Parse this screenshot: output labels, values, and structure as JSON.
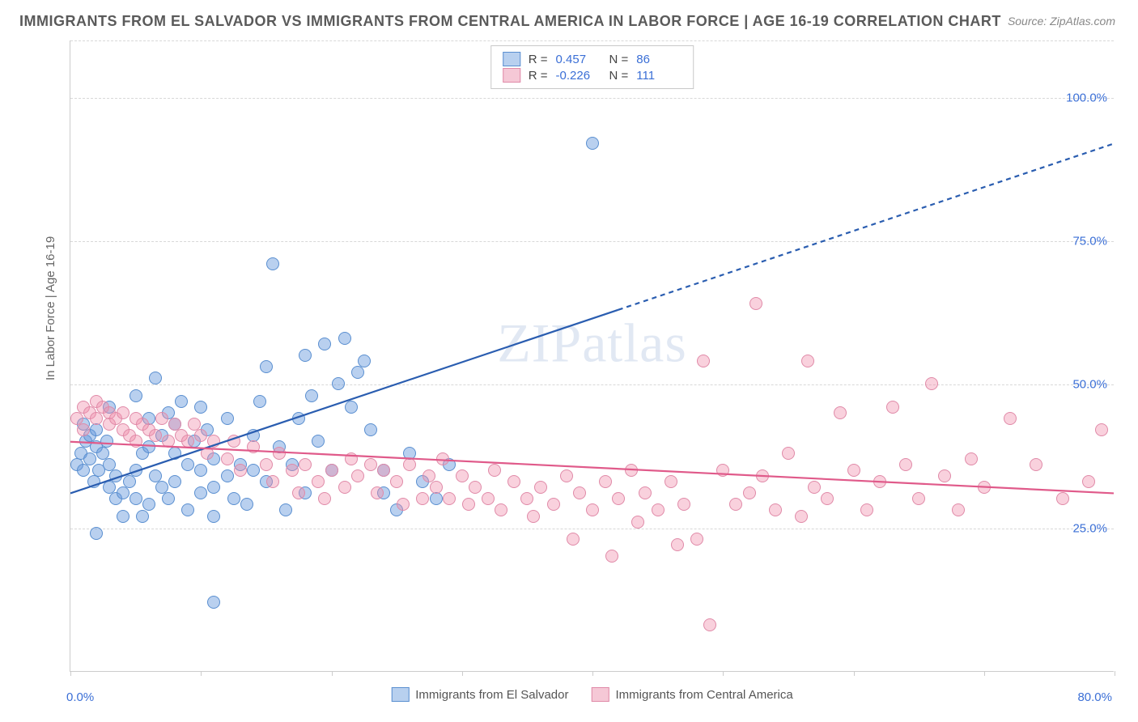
{
  "title": "IMMIGRANTS FROM EL SALVADOR VS IMMIGRANTS FROM CENTRAL AMERICA IN LABOR FORCE | AGE 16-19 CORRELATION CHART",
  "source": "Source: ZipAtlas.com",
  "yaxis_label": "In Labor Force | Age 16-19",
  "watermark": "ZIPatlas",
  "chart": {
    "type": "scatter",
    "xlim": [
      0,
      80
    ],
    "ylim": [
      0,
      110
    ],
    "x_ticks": [
      0,
      10,
      20,
      30,
      40,
      50,
      60,
      70,
      80
    ],
    "x_tick_labels": {
      "0": "0.0%",
      "80": "80.0%"
    },
    "y_gridlines": [
      25,
      50,
      75,
      100
    ],
    "y_labels": {
      "25": "25.0%",
      "50": "50.0%",
      "75": "75.0%",
      "100": "100.0%"
    },
    "background_color": "#ffffff",
    "grid_color": "#d8d8d8",
    "axis_color": "#cccccc",
    "tick_label_color": "#3b6fd6",
    "marker_radius": 8,
    "marker_opacity": 0.55,
    "series": [
      {
        "name": "Immigrants from El Salvador",
        "color_fill": "rgba(100,150,220,0.45)",
        "color_stroke": "#5a8fd0",
        "legend_fill": "#b8d0ef",
        "legend_stroke": "#5a8fd0",
        "R": "0.457",
        "N": "86",
        "trend": {
          "x1": 0,
          "y1": 31,
          "x2_solid": 42,
          "y2_solid": 63,
          "x2_dash": 80,
          "y2_dash": 92,
          "color": "#2a5db0",
          "width": 2.2
        },
        "points": [
          [
            0.5,
            36
          ],
          [
            0.8,
            38
          ],
          [
            1,
            35
          ],
          [
            1.2,
            40
          ],
          [
            1.5,
            37
          ],
          [
            1.8,
            33
          ],
          [
            2,
            39
          ],
          [
            1,
            43
          ],
          [
            1.5,
            41
          ],
          [
            2,
            42
          ],
          [
            2.2,
            35
          ],
          [
            2.5,
            38
          ],
          [
            2.8,
            40
          ],
          [
            3,
            36
          ],
          [
            3,
            32
          ],
          [
            3.5,
            34
          ],
          [
            3.5,
            30
          ],
          [
            4,
            31
          ],
          [
            4,
            27
          ],
          [
            4.5,
            33
          ],
          [
            5,
            30
          ],
          [
            5,
            35
          ],
          [
            5.5,
            38
          ],
          [
            5.5,
            27
          ],
          [
            6,
            29
          ],
          [
            6,
            39
          ],
          [
            6,
            44
          ],
          [
            6.5,
            34
          ],
          [
            7,
            32
          ],
          [
            7,
            41
          ],
          [
            7.5,
            30
          ],
          [
            7.5,
            45
          ],
          [
            8,
            33
          ],
          [
            8,
            38
          ],
          [
            8,
            43
          ],
          [
            8.5,
            47
          ],
          [
            9,
            36
          ],
          [
            9,
            28
          ],
          [
            9.5,
            40
          ],
          [
            10,
            31
          ],
          [
            10,
            35
          ],
          [
            10,
            46
          ],
          [
            10.5,
            42
          ],
          [
            11,
            32
          ],
          [
            11,
            37
          ],
          [
            11,
            27
          ],
          [
            12,
            34
          ],
          [
            12,
            44
          ],
          [
            12.5,
            30
          ],
          [
            13,
            36
          ],
          [
            13.5,
            29
          ],
          [
            14,
            35
          ],
          [
            14,
            41
          ],
          [
            14.5,
            47
          ],
          [
            15,
            33
          ],
          [
            15,
            53
          ],
          [
            15.5,
            71
          ],
          [
            16,
            39
          ],
          [
            16.5,
            28
          ],
          [
            17,
            36
          ],
          [
            17.5,
            44
          ],
          [
            18,
            31
          ],
          [
            18,
            55
          ],
          [
            18.5,
            48
          ],
          [
            19,
            40
          ],
          [
            19.5,
            57
          ],
          [
            20,
            35
          ],
          [
            20.5,
            50
          ],
          [
            21,
            58
          ],
          [
            21.5,
            46
          ],
          [
            22,
            52
          ],
          [
            22.5,
            54
          ],
          [
            23,
            42
          ],
          [
            24,
            31
          ],
          [
            24,
            35
          ],
          [
            25,
            28
          ],
          [
            26,
            38
          ],
          [
            27,
            33
          ],
          [
            28,
            30
          ],
          [
            29,
            36
          ],
          [
            11,
            12
          ],
          [
            40,
            92
          ],
          [
            2,
            24
          ],
          [
            3,
            46
          ],
          [
            5,
            48
          ],
          [
            6.5,
            51
          ]
        ]
      },
      {
        "name": "Immigrants from Central America",
        "color_fill": "rgba(240,140,170,0.40)",
        "color_stroke": "#e08aa8",
        "legend_fill": "#f5c8d6",
        "legend_stroke": "#e08aa8",
        "R": "-0.226",
        "N": "111",
        "trend": {
          "x1": 0,
          "y1": 40,
          "x2_solid": 80,
          "y2_solid": 31,
          "color": "#e05a8a",
          "width": 2.2
        },
        "points": [
          [
            0.5,
            44
          ],
          [
            1,
            46
          ],
          [
            1,
            42
          ],
          [
            1.5,
            45
          ],
          [
            2,
            44
          ],
          [
            2,
            47
          ],
          [
            2.5,
            46
          ],
          [
            3,
            43
          ],
          [
            3,
            45
          ],
          [
            3.5,
            44
          ],
          [
            4,
            42
          ],
          [
            4,
            45
          ],
          [
            4.5,
            41
          ],
          [
            5,
            44
          ],
          [
            5,
            40
          ],
          [
            5.5,
            43
          ],
          [
            6,
            42
          ],
          [
            6.5,
            41
          ],
          [
            7,
            44
          ],
          [
            7.5,
            40
          ],
          [
            8,
            43
          ],
          [
            8.5,
            41
          ],
          [
            9,
            40
          ],
          [
            9.5,
            43
          ],
          [
            10,
            41
          ],
          [
            10.5,
            38
          ],
          [
            11,
            40
          ],
          [
            12,
            37
          ],
          [
            12.5,
            40
          ],
          [
            13,
            35
          ],
          [
            14,
            39
          ],
          [
            15,
            36
          ],
          [
            15.5,
            33
          ],
          [
            16,
            38
          ],
          [
            17,
            35
          ],
          [
            17.5,
            31
          ],
          [
            18,
            36
          ],
          [
            19,
            33
          ],
          [
            19.5,
            30
          ],
          [
            20,
            35
          ],
          [
            21,
            32
          ],
          [
            21.5,
            37
          ],
          [
            22,
            34
          ],
          [
            23,
            36
          ],
          [
            23.5,
            31
          ],
          [
            24,
            35
          ],
          [
            25,
            33
          ],
          [
            25.5,
            29
          ],
          [
            26,
            36
          ],
          [
            27,
            30
          ],
          [
            27.5,
            34
          ],
          [
            28,
            32
          ],
          [
            28.5,
            37
          ],
          [
            29,
            30
          ],
          [
            30,
            34
          ],
          [
            30.5,
            29
          ],
          [
            31,
            32
          ],
          [
            32,
            30
          ],
          [
            32.5,
            35
          ],
          [
            33,
            28
          ],
          [
            34,
            33
          ],
          [
            35,
            30
          ],
          [
            35.5,
            27
          ],
          [
            36,
            32
          ],
          [
            37,
            29
          ],
          [
            38,
            34
          ],
          [
            38.5,
            23
          ],
          [
            39,
            31
          ],
          [
            40,
            28
          ],
          [
            41,
            33
          ],
          [
            41.5,
            20
          ],
          [
            42,
            30
          ],
          [
            43,
            35
          ],
          [
            43.5,
            26
          ],
          [
            44,
            31
          ],
          [
            45,
            28
          ],
          [
            46,
            33
          ],
          [
            46.5,
            22
          ],
          [
            47,
            29
          ],
          [
            48,
            23
          ],
          [
            48.5,
            54
          ],
          [
            49,
            8
          ],
          [
            50,
            35
          ],
          [
            51,
            29
          ],
          [
            52,
            31
          ],
          [
            52.5,
            64
          ],
          [
            53,
            34
          ],
          [
            54,
            28
          ],
          [
            55,
            38
          ],
          [
            56,
            27
          ],
          [
            56.5,
            54
          ],
          [
            57,
            32
          ],
          [
            58,
            30
          ],
          [
            59,
            45
          ],
          [
            60,
            35
          ],
          [
            61,
            28
          ],
          [
            62,
            33
          ],
          [
            63,
            46
          ],
          [
            64,
            36
          ],
          [
            65,
            30
          ],
          [
            66,
            50
          ],
          [
            67,
            34
          ],
          [
            68,
            28
          ],
          [
            69,
            37
          ],
          [
            70,
            32
          ],
          [
            72,
            44
          ],
          [
            74,
            36
          ],
          [
            76,
            30
          ],
          [
            78,
            33
          ],
          [
            79,
            42
          ]
        ]
      }
    ]
  },
  "legend_bottom": [
    {
      "label": "Immigrants from El Salvador",
      "fill": "#b8d0ef",
      "stroke": "#5a8fd0"
    },
    {
      "label": "Immigrants from Central America",
      "fill": "#f5c8d6",
      "stroke": "#e08aa8"
    }
  ]
}
